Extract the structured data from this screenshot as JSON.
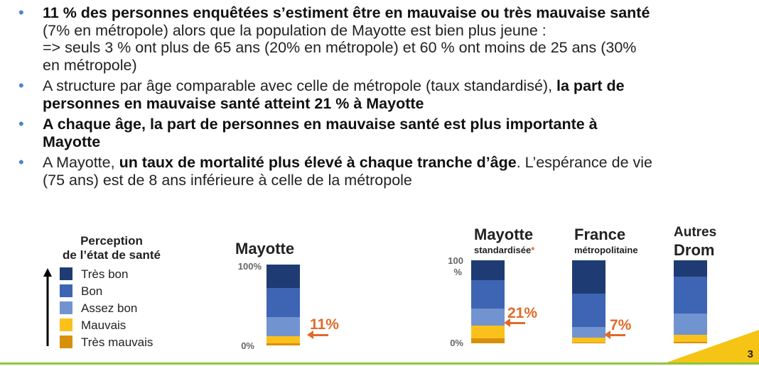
{
  "bullets": [
    {
      "l1_b": "11 % des personnes enquêtées s’estiment être en mauvaise ou très mauvaise santé",
      "l2": "(7% en métropole) alors que la population de Mayotte est bien plus jeune :",
      "l3": "=> seuls 3 % ont plus de 65 ans (20% en métropole) et 60 % ont moins de 25 ans (30%",
      "l4": "en métropole)"
    },
    {
      "l1_a": "A structure par âge comparable avec  celle de métropole (taux standardisé), ",
      "l1_b": "la part de",
      "l2_b": "personnes en mauvaise santé atteint 21 % à Mayotte"
    },
    {
      "l1_b": "A chaque âge, la part de personnes en mauvaise santé est plus importante à",
      "l2_b": "Mayotte"
    },
    {
      "l1_a": "A Mayotte, ",
      "l1_b": "un taux de mortalité plus élevé à chaque tranche d’âge",
      "l1_c": ". L’espérance de vie",
      "l2": "(75 ans) est de 8 ans inférieure à celle de la métropole"
    }
  ],
  "legend": {
    "title_line1": "Perception",
    "title_line2": "de l’état de santé",
    "items": [
      {
        "label": "Très bon",
        "color": "#1f3b73"
      },
      {
        "label": "Bon",
        "color": "#3d65b4"
      },
      {
        "label": "Assez bon",
        "color": "#7193cf"
      },
      {
        "label": "Mauvais",
        "color": "#fbc11b"
      },
      {
        "label": "Très mauvais",
        "color": "#d8900c"
      }
    ]
  },
  "charts": {
    "mayotte": {
      "title": "Mayotte",
      "axis_top": "100%",
      "axis_bottom": "0%",
      "annotation": "11%"
    },
    "mayotte_std": {
      "title": "Mayotte",
      "subtitle": "standardisée",
      "star": "*",
      "axis_top_1": "100",
      "axis_top_2": "%",
      "axis_bottom": "0%",
      "annotation": "21%"
    },
    "france": {
      "title": "France",
      "subtitle": "métropolitaine",
      "annotation": "7%"
    },
    "drom": {
      "title_line1": "Autres",
      "title_line2": "Drom"
    }
  },
  "chart_data": {
    "type": "bar",
    "stacked": true,
    "categories": [
      "Mayotte",
      "Mayotte standardisée*",
      "France métropolitaine",
      "Autres Drom"
    ],
    "series": [
      {
        "name": "Très bon",
        "values": [
          29,
          24,
          40,
          20
        ]
      },
      {
        "name": "Bon",
        "values": [
          36,
          34,
          40,
          44
        ]
      },
      {
        "name": "Assez bon",
        "values": [
          24,
          21,
          13,
          26
        ]
      },
      {
        "name": "Mauvais",
        "values": [
          8,
          15,
          6,
          8
        ]
      },
      {
        "name": "Très mauvais",
        "values": [
          3,
          6,
          1,
          2
        ]
      }
    ],
    "ylim": [
      0,
      100
    ],
    "annotations": [
      "11%",
      "21%",
      "7%"
    ]
  },
  "page_number": "3",
  "colors": {
    "bullet": "#4a86c8",
    "accent": "#e06a2a",
    "corner": "#f5c414",
    "line": "#8cc63f"
  }
}
